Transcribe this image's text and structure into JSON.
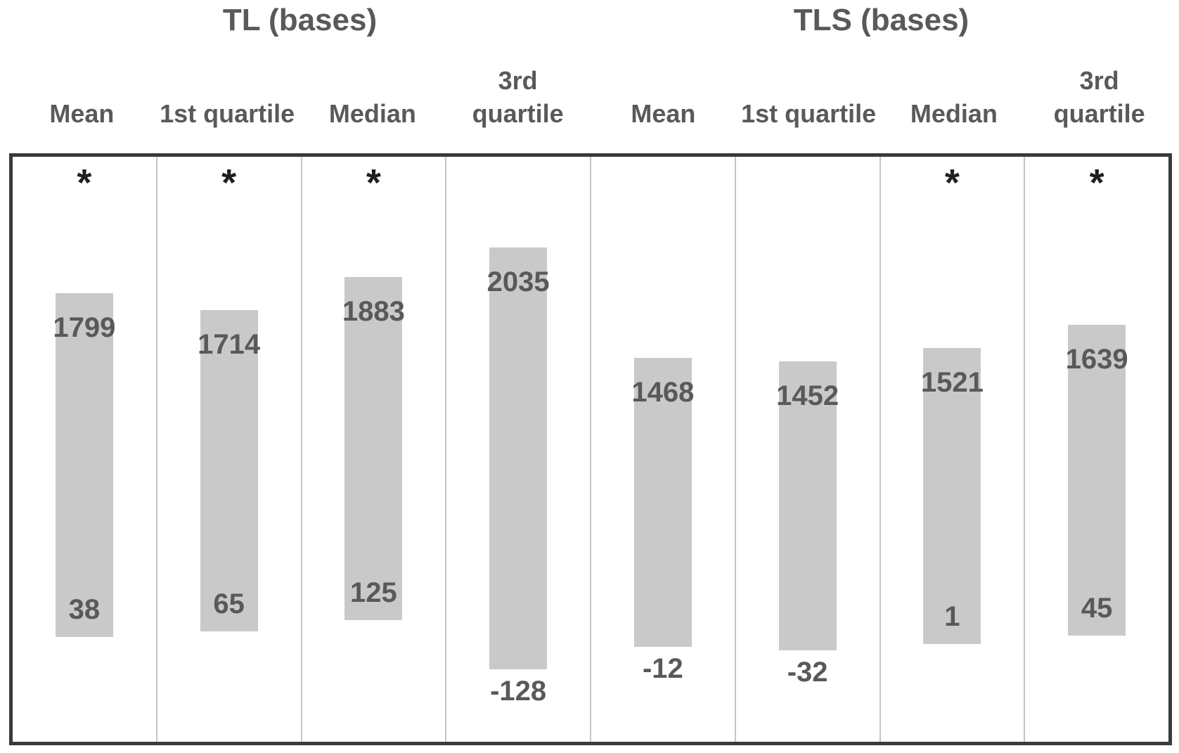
{
  "chart_data": {
    "type": "bar",
    "variant": "floating-range-bars",
    "title": "",
    "xlabel": "",
    "ylabel": "",
    "ylim": [
      -500,
      2500
    ],
    "grid": false,
    "legend": "none",
    "axis_ticks": "none",
    "significance_marker": "*",
    "groups": [
      {
        "title": "TL (bases)",
        "columns": [
          {
            "header": "Mean",
            "max": 1799,
            "min": 38,
            "significant": true
          },
          {
            "header": "1st quartile",
            "max": 1714,
            "min": 65,
            "significant": true
          },
          {
            "header": "Median",
            "max": 1883,
            "min": 125,
            "significant": true
          },
          {
            "header": "3rd quartile",
            "max": 2035,
            "min": -128,
            "significant": false
          }
        ]
      },
      {
        "title": "TLS (bases)",
        "columns": [
          {
            "header": "Mean",
            "max": 1468,
            "min": -12,
            "significant": false
          },
          {
            "header": "1st quartile",
            "max": 1452,
            "min": -32,
            "significant": false
          },
          {
            "header": "Median",
            "max": 1521,
            "min": 1,
            "significant": true
          },
          {
            "header": "3rd quartile",
            "max": 1639,
            "min": 45,
            "significant": true
          }
        ]
      }
    ],
    "colors": {
      "background": "#ffffff",
      "bar_fill": "#c9c9c9",
      "value_text": "#595959",
      "header_text": "#595959",
      "marker_text": "#1f1f1f",
      "box_border": "#3a3a3a",
      "column_divider": "#c5c5c5"
    }
  }
}
